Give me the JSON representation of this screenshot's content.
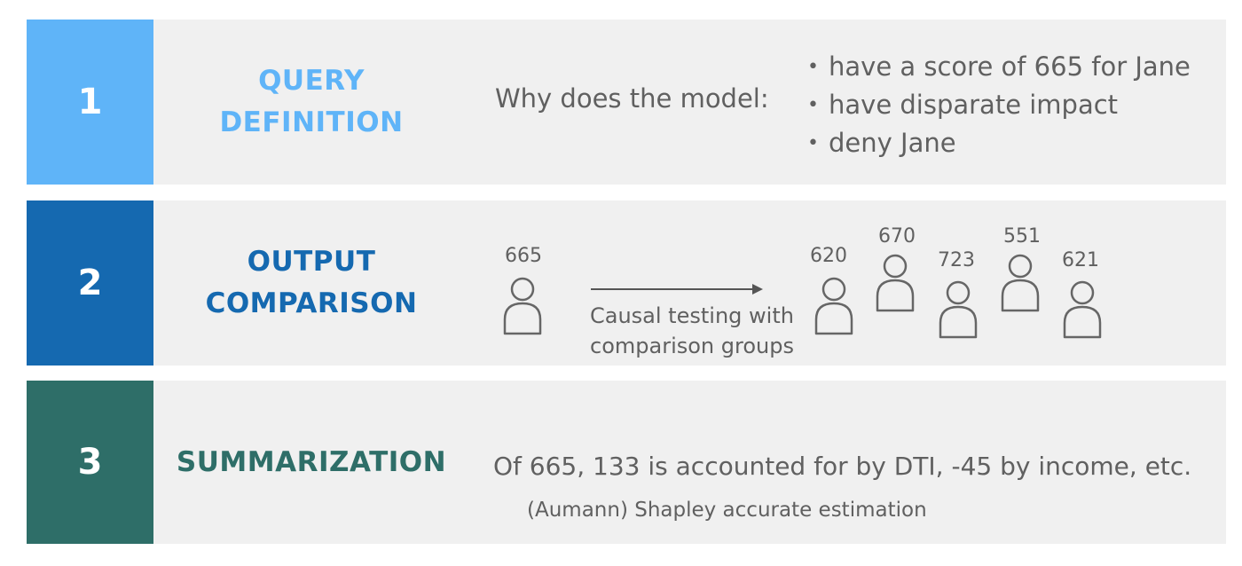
{
  "steps": [
    {
      "number": "1",
      "title_lines": [
        "QUERY",
        "DEFINITION"
      ],
      "color": "#5fb4f8",
      "question": "Why does the model:",
      "bullets": [
        "have a score of 665 for Jane",
        "have disparate impact",
        "deny Jane"
      ]
    },
    {
      "number": "2",
      "title_lines": [
        "OUTPUT",
        "COMPARISON"
      ],
      "color": "#1569b0",
      "subject": {
        "score": "665",
        "icon": "person-icon"
      },
      "arrow_label_lines": [
        "Causal testing with",
        "comparison groups"
      ],
      "comparison_group": [
        {
          "score": "620",
          "icon": "person-icon"
        },
        {
          "score": "670",
          "icon": "person-icon"
        },
        {
          "score": "723",
          "icon": "person-icon"
        },
        {
          "score": "551",
          "icon": "person-icon"
        },
        {
          "score": "621",
          "icon": "person-icon"
        }
      ]
    },
    {
      "number": "3",
      "title_lines": [
        "SUMMARIZATION"
      ],
      "color": "#2e6e68",
      "summary": "Of 665, 133 is accounted for by DTI, -45 by income, etc.",
      "method": "(Aumann) Shapley accurate estimation"
    }
  ],
  "bullet_glyph": "•"
}
